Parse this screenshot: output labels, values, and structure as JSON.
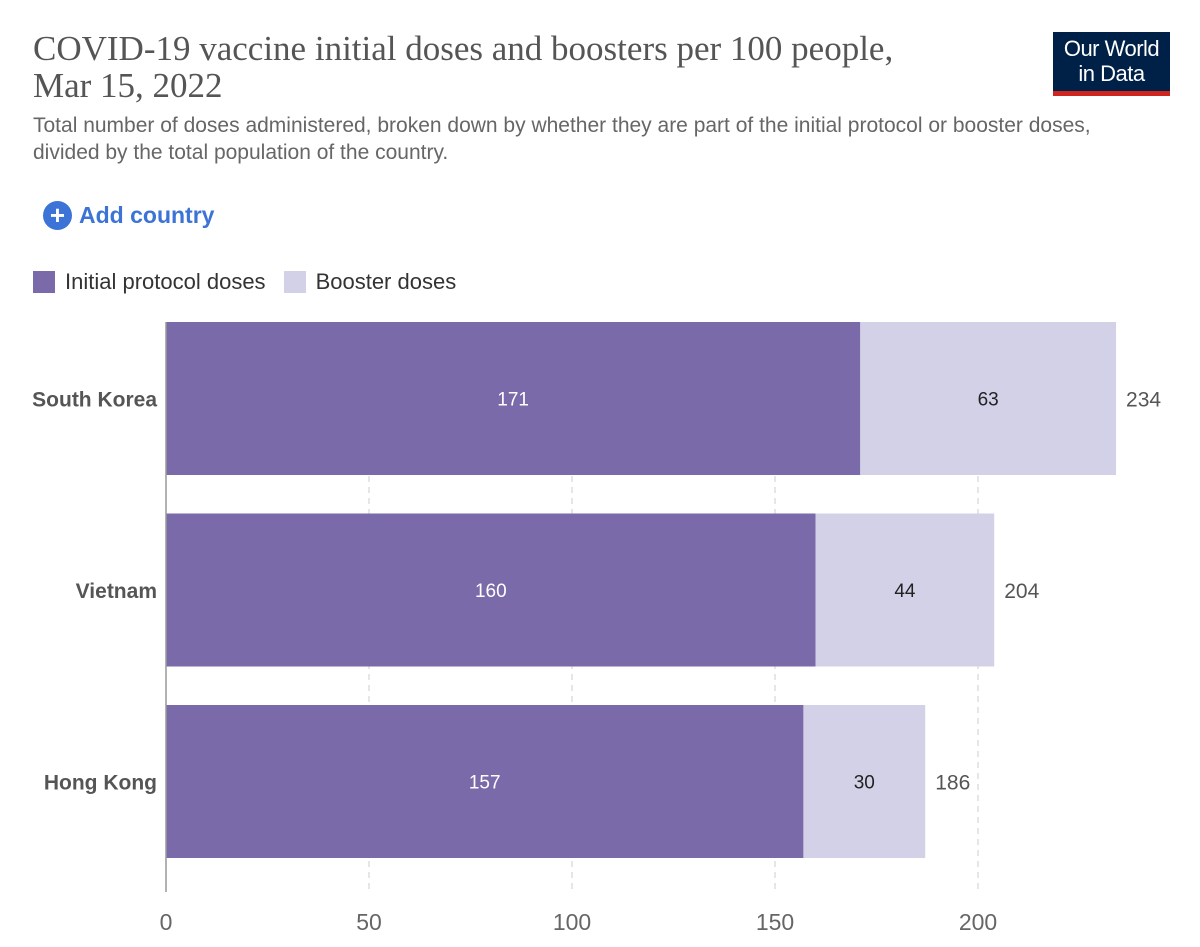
{
  "header": {
    "title": "COVID-19 vaccine initial doses and boosters per 100 people, Mar 15, 2022",
    "subtitle": "Total number of doses administered, broken down by whether they are part of the initial protocol or booster doses, divided by the total population of the country.",
    "logo_line1": "Our World",
    "logo_line2": "in Data",
    "add_country_label": "Add country",
    "add_icon": "plus-circle-icon"
  },
  "colors": {
    "initial": "#7b6aaa",
    "booster": "#d3d1e7",
    "accent": "#3b73d6",
    "logo_bg": "#002147",
    "logo_stripe": "#ce261e"
  },
  "chart_data": {
    "type": "bar",
    "orientation": "horizontal",
    "stacked": true,
    "categories": [
      "South Korea",
      "Vietnam",
      "Hong Kong"
    ],
    "series": [
      {
        "name": "Initial protocol doses",
        "values": [
          171,
          160,
          157
        ],
        "labels": [
          "171",
          "160",
          "157"
        ]
      },
      {
        "name": "Booster doses",
        "values": [
          63,
          44,
          30
        ],
        "labels": [
          "63",
          "44",
          "30"
        ]
      }
    ],
    "totals": [
      "234",
      "204",
      "186"
    ],
    "xlim": [
      0,
      234
    ],
    "xticks": [
      0,
      50,
      100,
      150,
      200
    ],
    "xtick_labels": [
      "0",
      "50",
      "100",
      "150",
      "200"
    ],
    "grid": true,
    "legend_position": "top-left"
  }
}
